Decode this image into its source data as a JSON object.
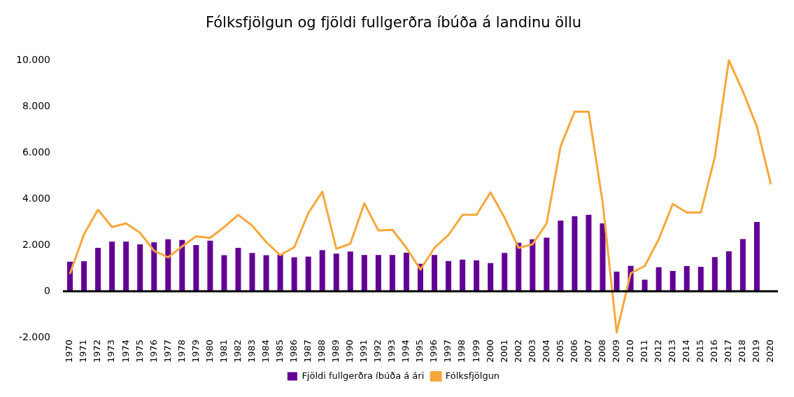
{
  "chart_data": {
    "type": "bar",
    "title": "Fólksfjölgun og fjöldi fullgerðra íbúða á landinu öllu",
    "categories": [
      "1970",
      "1971",
      "1972",
      "1973",
      "1974",
      "1975",
      "1976",
      "1977",
      "1978",
      "1979",
      "1980",
      "1981",
      "1982",
      "1983",
      "1984",
      "1985",
      "1986",
      "1987",
      "1988",
      "1989",
      "1990",
      "1991",
      "1992",
      "1993",
      "1994",
      "1995",
      "1996",
      "1997",
      "1998",
      "1999",
      "2000",
      "2001",
      "2002",
      "2003",
      "2004",
      "2005",
      "2006",
      "2007",
      "2008",
      "2009",
      "2010",
      "2011",
      "2012",
      "2013",
      "2014",
      "2015",
      "2016",
      "2017",
      "2018",
      "2019",
      "2020"
    ],
    "series": [
      {
        "name": "Fjöldi fullgerðra íbúða á ári",
        "color": "#630094",
        "values": [
          1280,
          1300,
          1880,
          2150,
          2150,
          2030,
          2120,
          2250,
          2220,
          2000,
          2190,
          1560,
          1880,
          1660,
          1560,
          1580,
          1470,
          1500,
          1780,
          1630,
          1720,
          1570,
          1570,
          1570,
          1670,
          1190,
          1570,
          1310,
          1370,
          1340,
          1220,
          1660,
          2100,
          2250,
          2320,
          3060,
          3250,
          3310,
          2940,
          850,
          1100,
          500,
          1040,
          880,
          1090,
          1060,
          1480,
          1730,
          2260,
          3000,
          null
        ]
      },
      {
        "name": "Fólksfjölgun",
        "type": "line",
        "color": "#f7a73a",
        "values": [
          750,
          2470,
          3530,
          2780,
          2940,
          2530,
          1750,
          1470,
          1940,
          2380,
          2310,
          2780,
          3310,
          2840,
          2130,
          1560,
          1910,
          3380,
          4310,
          1840,
          2060,
          3810,
          2630,
          2660,
          1880,
          940,
          1880,
          2440,
          3310,
          3310,
          4280,
          3190,
          1880,
          2030,
          2940,
          6280,
          7780,
          7780,
          3840,
          -1780,
          780,
          1090,
          2250,
          3780,
          3410,
          3410,
          5810,
          10000,
          8660,
          7130,
          4630
        ]
      }
    ],
    "ylim": [
      -2000,
      10000
    ],
    "yticks": [
      {
        "value": -2000,
        "label": "-2.000"
      },
      {
        "value": 0,
        "label": "0"
      },
      {
        "value": 2000,
        "label": "2.000"
      },
      {
        "value": 4000,
        "label": "4.000"
      },
      {
        "value": 6000,
        "label": "6.000"
      },
      {
        "value": 8000,
        "label": "8.000"
      },
      {
        "value": 10000,
        "label": "10.000"
      }
    ],
    "legend": "bottom",
    "marker": "none",
    "line_style": "solid"
  }
}
